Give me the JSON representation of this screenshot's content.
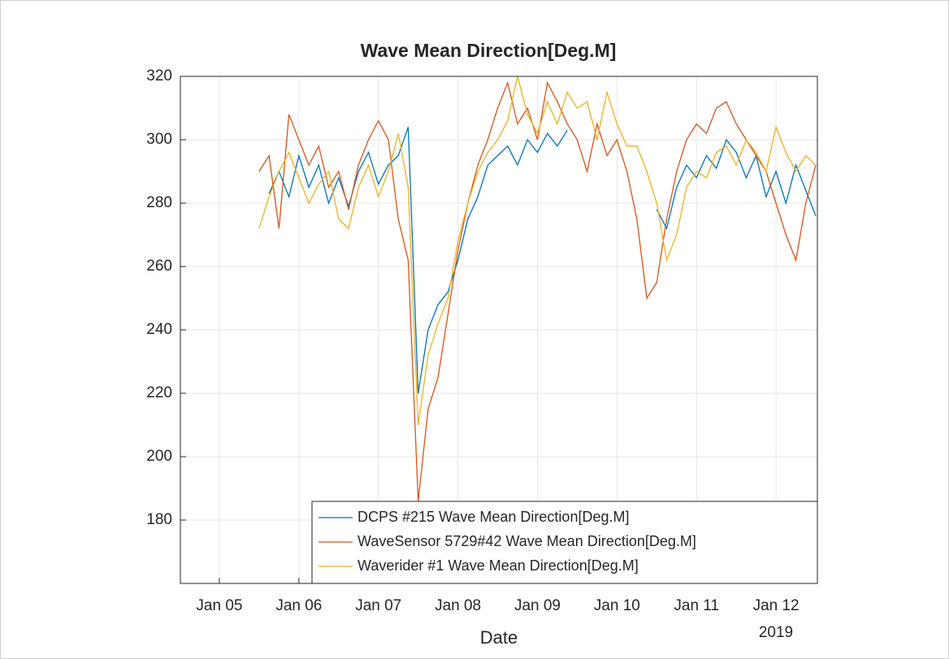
{
  "chart_data": {
    "type": "line",
    "title": "Wave Mean Direction[Deg.M]",
    "xlabel": "Date",
    "x_secondary_label": "2019",
    "x": [
      5.5,
      5.625,
      5.75,
      5.875,
      6.0,
      6.125,
      6.25,
      6.375,
      6.5,
      6.625,
      6.75,
      6.875,
      7.0,
      7.125,
      7.25,
      7.375,
      7.5,
      7.625,
      7.75,
      7.875,
      8.0,
      8.125,
      8.25,
      8.375,
      8.5,
      8.625,
      8.75,
      8.875,
      9.0,
      9.125,
      9.25,
      9.375,
      9.5,
      9.625,
      9.75,
      9.875,
      10.0,
      10.125,
      10.25,
      10.375,
      10.5,
      10.625,
      10.75,
      10.875,
      11.0,
      11.125,
      11.25,
      11.375,
      11.5,
      11.625,
      11.75,
      11.875,
      12.0,
      12.125,
      12.25,
      12.375,
      12.5
    ],
    "series": [
      {
        "name": "DCPS #215 Wave Mean Direction[Deg.M]",
        "color": "#0072bd",
        "values": [
          null,
          283,
          290,
          282,
          295,
          285,
          292,
          280,
          288,
          279,
          290,
          296,
          286,
          292,
          295,
          304,
          220,
          240,
          248,
          252,
          262,
          275,
          282,
          292,
          295,
          298,
          292,
          300,
          296,
          302,
          298,
          303,
          null,
          null,
          null,
          null,
          null,
          null,
          null,
          null,
          278,
          272,
          285,
          292,
          288,
          295,
          291,
          300,
          296,
          288,
          295,
          282,
          290,
          280,
          292,
          284,
          276
        ]
      },
      {
        "name": "WaveSensor 5729#42 Wave Mean Direction[Deg.M]",
        "color": "#d95319",
        "values": [
          290,
          295,
          272,
          308,
          300,
          292,
          298,
          285,
          290,
          278,
          292,
          300,
          306,
          300,
          275,
          262,
          186,
          215,
          225,
          245,
          265,
          280,
          292,
          300,
          310,
          318,
          305,
          310,
          300,
          318,
          312,
          305,
          300,
          290,
          305,
          295,
          300,
          290,
          275,
          250,
          255,
          275,
          290,
          300,
          305,
          302,
          310,
          312,
          305,
          300,
          295,
          290,
          280,
          270,
          262,
          280,
          292
        ]
      },
      {
        "name": "Waverider #1 Wave Mean Direction[Deg.M]",
        "color": "#edb120",
        "values": [
          272,
          282,
          290,
          296,
          288,
          280,
          286,
          290,
          275,
          272,
          285,
          292,
          282,
          290,
          302,
          285,
          210,
          232,
          242,
          250,
          268,
          280,
          290,
          296,
          300,
          306,
          320,
          308,
          302,
          312,
          305,
          315,
          310,
          312,
          300,
          315,
          305,
          298,
          298,
          290,
          280,
          262,
          270,
          285,
          290,
          288,
          296,
          298,
          292,
          300,
          296,
          290,
          304,
          296,
          290,
          295,
          292
        ]
      }
    ],
    "xlim": [
      4.51,
      12.52
    ],
    "xticks": [
      {
        "value": 5,
        "label": "Jan 05"
      },
      {
        "value": 6,
        "label": "Jan 06"
      },
      {
        "value": 7,
        "label": "Jan 07"
      },
      {
        "value": 8,
        "label": "Jan 08"
      },
      {
        "value": 9,
        "label": "Jan 09"
      },
      {
        "value": 10,
        "label": "Jan 10"
      },
      {
        "value": 11,
        "label": "Jan 11"
      },
      {
        "value": 12,
        "label": "Jan 12"
      }
    ],
    "ylim": [
      160,
      320
    ],
    "yticks": [
      180,
      200,
      220,
      240,
      260,
      280,
      300,
      320
    ],
    "grid": true,
    "legend": "lower right"
  }
}
